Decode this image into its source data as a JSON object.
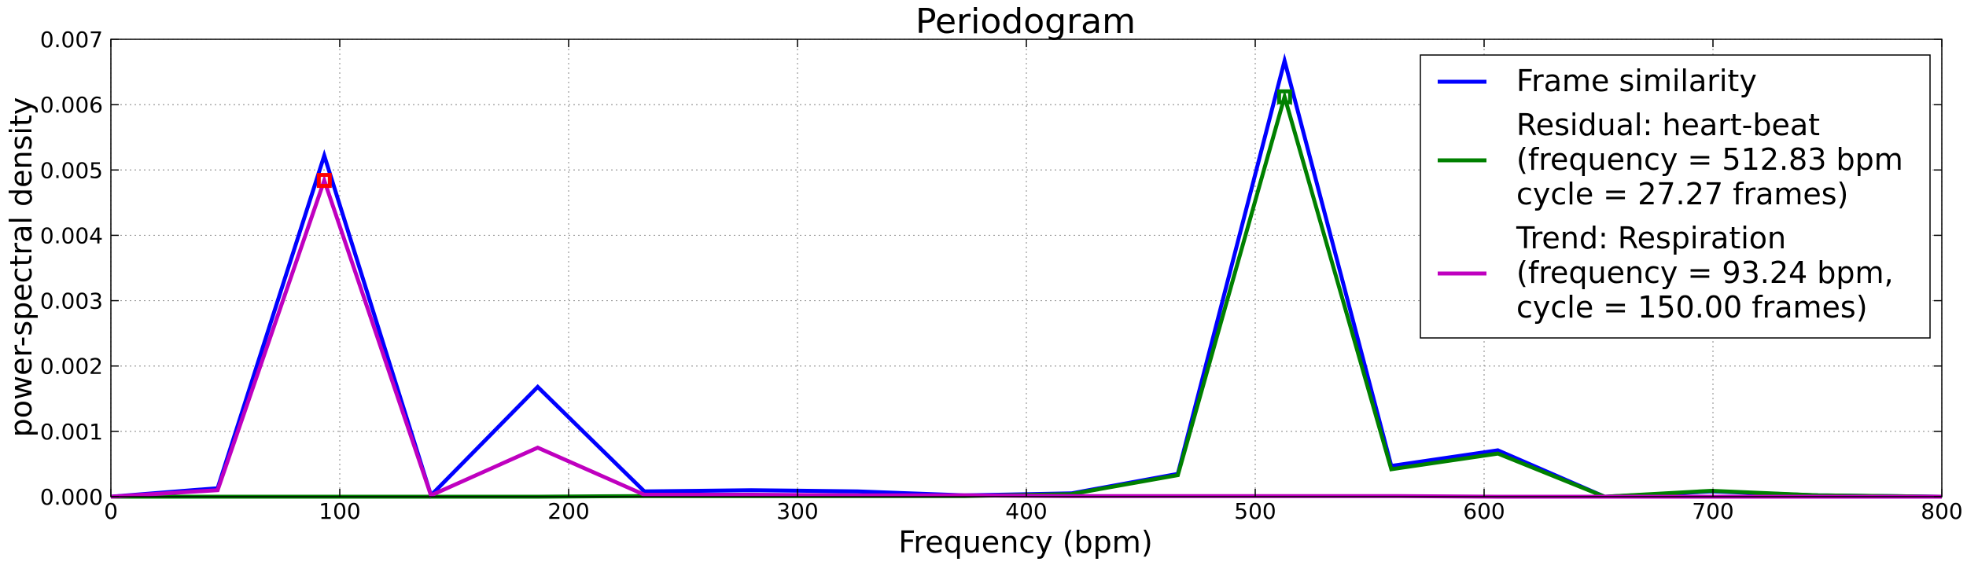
{
  "chart_data": {
    "type": "line",
    "title": "Periodogram",
    "xlabel": "Frequency (bpm)",
    "ylabel": "power-spectral density",
    "xlim": [
      0,
      800
    ],
    "ylim": [
      0,
      0.007
    ],
    "grid": true,
    "legend_position": "top-right",
    "x_ticks": [
      0,
      100,
      200,
      300,
      400,
      500,
      600,
      700,
      800
    ],
    "x_tick_labels": [
      "0",
      "100",
      "200",
      "300",
      "400",
      "500",
      "600",
      "700",
      "800"
    ],
    "y_ticks": [
      0,
      0.001,
      0.002,
      0.003,
      0.004,
      0.005,
      0.006,
      0.007
    ],
    "y_tick_labels": [
      "0.000",
      "0.001",
      "0.002",
      "0.003",
      "0.004",
      "0.005",
      "0.006",
      "0.007"
    ],
    "x": [
      0,
      46.62,
      93.24,
      139.86,
      186.48,
      233.1,
      279.72,
      326.34,
      372.96,
      419.58,
      466.2,
      512.83,
      559.44,
      606.06,
      652.68,
      699.3,
      745.92,
      800
    ],
    "series": [
      {
        "name": "Frame similarity",
        "color": "#0000ff",
        "values": [
          0.0,
          0.00013,
          0.00522,
          2e-05,
          0.00168,
          8e-05,
          0.0001,
          8e-05,
          2e-05,
          5e-05,
          0.00035,
          0.00667,
          0.00047,
          0.00071,
          0.0,
          8e-05,
          2e-05,
          0.0
        ],
        "legend_lines": [
          "Frame similarity"
        ]
      },
      {
        "name": "Residual: heart-beat",
        "color": "#008000",
        "values": [
          0.0,
          0.0,
          0.0,
          0.0,
          0.0,
          1e-05,
          1e-05,
          1e-05,
          1e-05,
          4e-05,
          0.00033,
          0.00612,
          0.00042,
          0.00066,
          0.0,
          9e-05,
          2e-05,
          0.0
        ],
        "legend_lines": [
          "Residual: heart-beat",
          "(frequency = 512.83 bpm",
          "cycle = 27.27 frames)"
        ],
        "marker": {
          "x": 512.83,
          "y": 0.00612,
          "color": "#008000"
        }
      },
      {
        "name": "Trend: Respiration",
        "color": "#bf00bf",
        "values": [
          0.0,
          0.0001,
          0.00484,
          2e-05,
          0.00075,
          3e-05,
          3e-05,
          2e-05,
          2e-05,
          1e-05,
          1e-05,
          1e-05,
          1e-05,
          0.0,
          0.0,
          0.0,
          0.0,
          0.0
        ],
        "legend_lines": [
          "Trend: Respiration",
          "(frequency = 93.24 bpm,",
          "cycle = 150.00 frames)"
        ],
        "marker": {
          "x": 93.24,
          "y": 0.00484,
          "color": "#ff0000"
        }
      }
    ]
  }
}
